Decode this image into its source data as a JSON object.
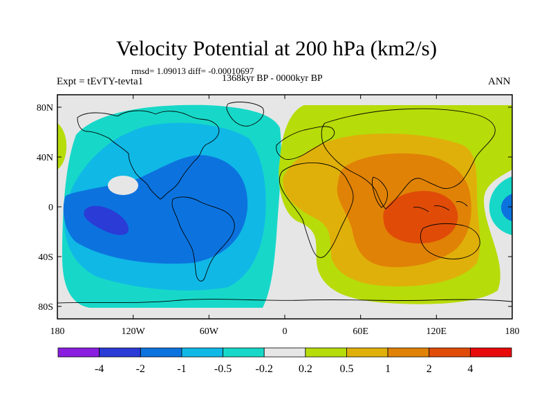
{
  "header": {
    "title": "Velocity Potential at 200 hPa (km2/s)",
    "stats": "rmsd= 1.09013 diff= -0.00010697",
    "period": "1368kyr BP - 0000kyr BP",
    "experiment": "Expt = tEvTY-tevta1",
    "season": "ANN"
  },
  "map": {
    "projection": "cylindrical-equidistant",
    "lon_range": [
      -180,
      180
    ],
    "lat_range": [
      -90,
      90
    ],
    "lat_ticks": [
      {
        "value": 80,
        "label": "80N"
      },
      {
        "value": 40,
        "label": "40N"
      },
      {
        "value": 0,
        "label": "0"
      },
      {
        "value": -40,
        "label": "40S"
      },
      {
        "value": -80,
        "label": "80S"
      }
    ],
    "lon_ticks": [
      {
        "value": -180,
        "label": "180"
      },
      {
        "value": -120,
        "label": "120W"
      },
      {
        "value": -60,
        "label": "60W"
      },
      {
        "value": 0,
        "label": "0"
      },
      {
        "value": 60,
        "label": "60E"
      },
      {
        "value": 120,
        "label": "120E"
      },
      {
        "value": 180,
        "label": "180"
      }
    ],
    "background_color": "#e6e6e6",
    "coastline_color": "#000000"
  },
  "colorbar": {
    "levels": [
      "-4",
      "-2",
      "-1",
      "-0.5",
      "-0.2",
      "0.2",
      "0.5",
      "1",
      "2",
      "4"
    ],
    "colors": [
      "#8a1ee0",
      "#2a3bd6",
      "#0c73de",
      "#10b8e6",
      "#17d8c8",
      "#e6e6e6",
      "#b6dc0a",
      "#e0b00a",
      "#e08206",
      "#e04c08",
      "#e80a0a"
    ]
  }
}
